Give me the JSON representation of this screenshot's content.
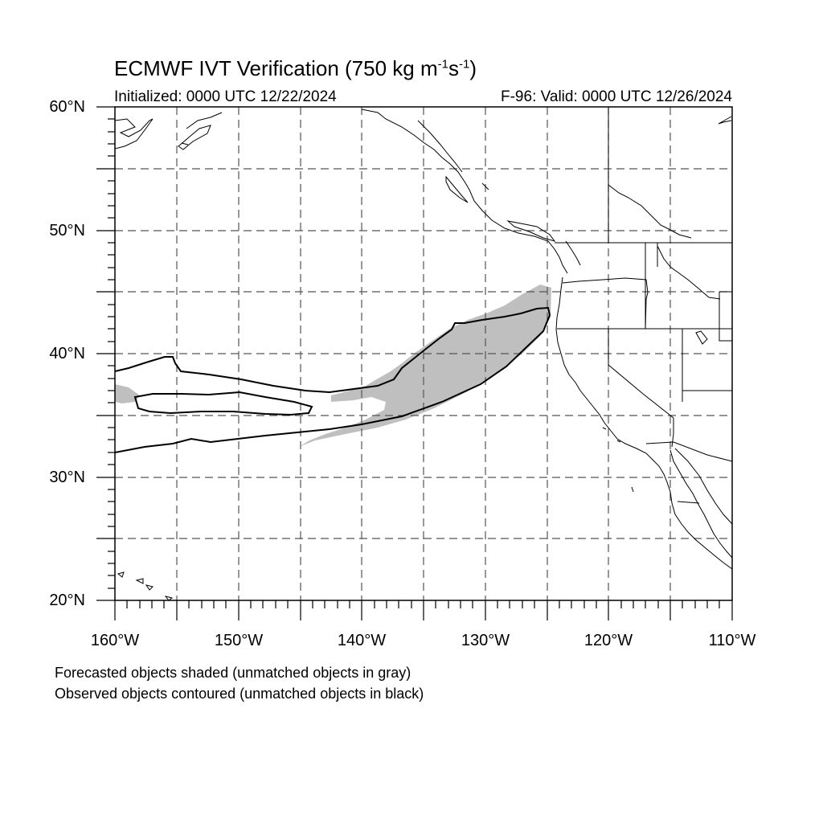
{
  "title": "ECMWF IVT Verification (750 kg m",
  "title_sup1": "-1",
  "title_mid": "s",
  "title_sup2": "-1",
  "title_end": ")",
  "subtitle_left": "Initialized: 0000 UTC 12/22/2024",
  "subtitle_right": "F-96: Valid: 0000 UTC 12/26/2024",
  "lat_labels": [
    "60°N",
    "50°N",
    "40°N",
    "30°N",
    "20°N"
  ],
  "lon_labels": [
    "160°W",
    "150°W",
    "140°W",
    "130°W",
    "120°W",
    "110°W"
  ],
  "notes": [
    "Forecasted objects shaded (unmatched objects in gray)",
    "Observed objects contoured (unmatched objects in black)"
  ],
  "map_extent": {
    "lon": [
      -160,
      -110
    ],
    "lat": [
      20,
      60
    ]
  },
  "colors": {
    "forecast_shade": "#bfbfbf",
    "observed_contour": "#000000",
    "grid": "#555555"
  }
}
